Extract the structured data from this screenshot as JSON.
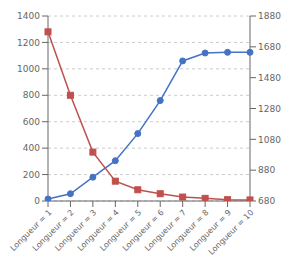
{
  "chart_data": {
    "type": "line",
    "categories": [
      "Longueur = 1",
      "Longueur = 2",
      "Longueur = 3",
      "Longueur = 4",
      "Longueur = 5",
      "Longueur = 6",
      "Longueur = 7",
      "Longueur = 8",
      "Longueur = 9",
      "Longueur = 10"
    ],
    "series": [
      {
        "color": "#4472C4",
        "marker": "circle",
        "values": [
          15,
          55,
          180,
          305,
          510,
          760,
          1060,
          1120,
          1125,
          1125
        ]
      },
      {
        "color": "#C0504D",
        "marker": "square",
        "values": [
          1280,
          800,
          370,
          150,
          85,
          55,
          30,
          20,
          10,
          8
        ]
      }
    ],
    "ylim": [
      0,
      1400
    ],
    "yticks": [
      0,
      200,
      400,
      600,
      800,
      1000,
      1200,
      1400
    ],
    "y2lim": [
      680,
      1880
    ],
    "y2ticks": [
      680,
      880,
      1080,
      1280,
      1480,
      1680,
      1880
    ],
    "grid": true
  }
}
